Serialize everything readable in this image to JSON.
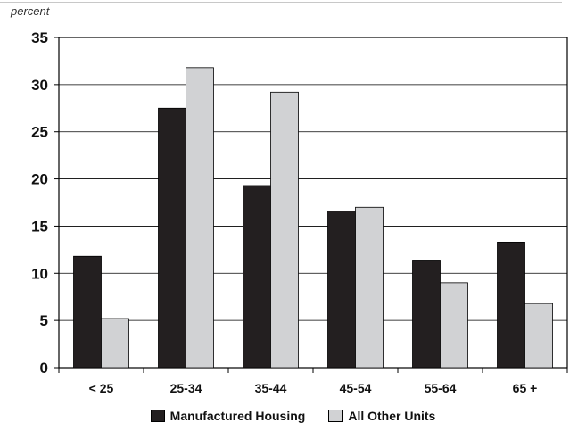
{
  "chart_data": {
    "type": "bar",
    "unit_label": "percent",
    "categories": [
      "< 25",
      "25-34",
      "35-44",
      "45-54",
      "55-64",
      "65 +"
    ],
    "series": [
      {
        "name": "Manufactured Housing",
        "color": "#231f20",
        "values": [
          11.8,
          27.5,
          19.3,
          16.6,
          11.4,
          13.3
        ]
      },
      {
        "name": "All Other Units",
        "color": "#d1d2d4",
        "values": [
          5.2,
          31.8,
          29.2,
          17.0,
          9.0,
          6.8
        ]
      }
    ],
    "ylim": [
      0,
      35
    ],
    "yticks": [
      0,
      5,
      10,
      15,
      20,
      25,
      30,
      35
    ],
    "grid": true,
    "legend": "bottom"
  }
}
